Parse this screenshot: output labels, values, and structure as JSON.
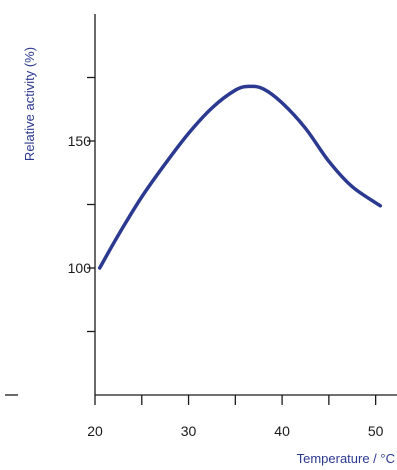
{
  "chart_data": {
    "type": "line",
    "title": "",
    "xlabel": "Temperature / °C",
    "ylabel": "Relative activity (%)",
    "xlim": [
      20,
      51
    ],
    "ylim": [
      50,
      200
    ],
    "x_ticks": [
      20,
      30,
      40,
      50
    ],
    "x_tick_labels": [
      "20",
      "30",
      "40",
      "50"
    ],
    "x_minor_ticks": [
      25,
      35,
      45
    ],
    "y_ticks": [
      100,
      150
    ],
    "y_tick_labels": [
      "100",
      "150"
    ],
    "y_minor_ticks": [
      75,
      125,
      175
    ],
    "grid": false,
    "series": [
      {
        "color": "#2b3990",
        "x": [
          20.5,
          22.5,
          25,
          27.5,
          30,
          32.5,
          35,
          36.5,
          38,
          40,
          42.5,
          45,
          47.5,
          50.5
        ],
        "y": [
          100,
          113,
          128,
          141,
          153,
          163,
          170,
          171.5,
          170.5,
          165,
          155,
          142,
          132,
          124.5
        ]
      }
    ],
    "colors": {
      "axis": "#1a1a1a",
      "label": "#2b3990"
    }
  }
}
